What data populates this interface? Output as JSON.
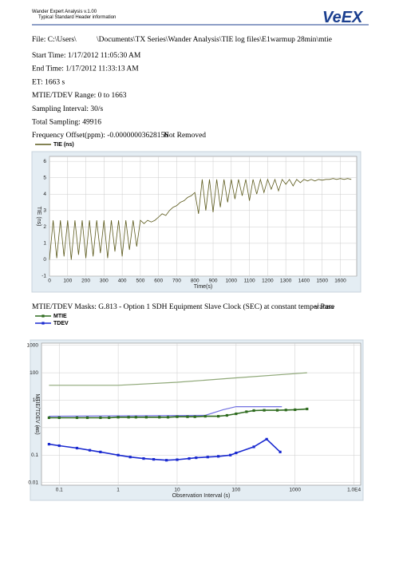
{
  "header": {
    "app": "Wander Expert Analysis v.1.00",
    "subtitle": "Typical Standard Header information",
    "logo": "VeEX"
  },
  "info": {
    "file_a": "File: C:\\Users\\",
    "file_b": "\\Documents\\TX Series\\Wander Analysis\\TIE log files\\E1warmup 28min\\mtie",
    "lines": [
      "Start Time: 1/17/2012 11:05:30 AM",
      "End Time: 1/17/2012 11:33:13 AM",
      "ET:  1663 s",
      "MTIE/TDEV Range: 0 to 1663",
      "Sampling Interval:  30/s",
      "Total Sampling:  49916"
    ],
    "freq": "Frequency Offset(ppm): -0.00000003628156",
    "freq_status": "Not Removed"
  },
  "masks": {
    "text": "MTIE/TDEV Masks: G.813 - Option 1 SDH Equipment Slave Clock (SEC) at constant temperature",
    "result": "√ Pass"
  },
  "chart_data": [
    {
      "type": "line",
      "xlabel": "Time(s)",
      "ylabel": "TIE (ns)",
      "xlim": [
        0,
        1690
      ],
      "ylim": [
        -1,
        6.3
      ],
      "xticks": [
        0,
        100,
        200,
        300,
        400,
        500,
        600,
        700,
        800,
        900,
        1000,
        1100,
        1200,
        1300,
        1400,
        1500,
        1600
      ],
      "yticks": [
        -1,
        0,
        1,
        2,
        3,
        4,
        5,
        6
      ],
      "grid": true,
      "x": [
        0,
        20,
        40,
        60,
        80,
        100,
        120,
        140,
        160,
        180,
        200,
        220,
        240,
        260,
        280,
        300,
        320,
        340,
        360,
        380,
        400,
        420,
        440,
        460,
        480,
        500,
        520,
        540,
        560,
        580,
        600,
        620,
        640,
        660,
        680,
        700,
        720,
        740,
        760,
        780,
        800,
        820,
        840,
        860,
        880,
        900,
        920,
        940,
        960,
        980,
        1000,
        1020,
        1040,
        1060,
        1080,
        1100,
        1120,
        1140,
        1160,
        1180,
        1200,
        1220,
        1240,
        1260,
        1280,
        1300,
        1320,
        1340,
        1360,
        1380,
        1400,
        1420,
        1440,
        1460,
        1480,
        1500,
        1520,
        1540,
        1560,
        1580,
        1600,
        1620,
        1640,
        1660
      ],
      "series": [
        {
          "name": "TIE (ns)",
          "color": "#5c5a1c",
          "values": [
            0.0,
            2.4,
            0.1,
            2.4,
            0.2,
            2.4,
            0.0,
            2.4,
            0.3,
            2.4,
            0.1,
            2.4,
            0.2,
            2.4,
            0.4,
            2.4,
            0.1,
            2.4,
            0.5,
            2.4,
            0.2,
            2.4,
            0.6,
            2.4,
            0.8,
            2.4,
            2.2,
            2.4,
            2.3,
            2.4,
            2.6,
            2.8,
            2.7,
            3.0,
            3.2,
            3.3,
            3.5,
            3.6,
            3.8,
            3.9,
            4.1,
            2.8,
            4.9,
            3.0,
            4.9,
            2.9,
            4.9,
            3.2,
            4.9,
            3.5,
            4.9,
            3.7,
            4.9,
            3.9,
            4.9,
            3.6,
            4.9,
            4.0,
            4.9,
            4.1,
            4.9,
            4.3,
            4.9,
            4.2,
            4.9,
            4.6,
            4.9,
            4.5,
            4.9,
            4.7,
            4.9,
            4.8,
            4.9,
            4.8,
            4.9,
            4.85,
            4.9,
            4.9,
            4.95,
            4.9,
            4.95,
            4.9,
            4.95,
            4.9
          ]
        }
      ]
    },
    {
      "type": "line",
      "xscale": "log",
      "yscale": "log",
      "xlabel": "Observation Interval (s)",
      "ylabel": "MTIE/TDEV (ns)",
      "xlim": [
        0.05,
        13000
      ],
      "ylim": [
        0.008,
        1200
      ],
      "xticks": [
        0.1,
        1,
        10,
        100,
        1000,
        {
          "value": 10000,
          "label": "1.0E4"
        }
      ],
      "yticks": [
        0.01,
        0.1,
        1,
        10,
        100,
        1000
      ],
      "grid": true,
      "mask_lines": [
        {
          "color": "#8fa878",
          "x": [
            0.067,
            1,
            10,
            100,
            1600
          ],
          "values": [
            35,
            35,
            45,
            65,
            100
          ]
        },
        {
          "color": "#7070e0",
          "x": [
            0.067,
            30,
            60,
            100,
            600
          ],
          "values": [
            2.6,
            2.8,
            4.5,
            5.8,
            5.8
          ]
        }
      ],
      "series": [
        {
          "name": "MTIE",
          "color": "#2e6b1e",
          "x": [
            0.067,
            0.1,
            0.2,
            0.3,
            0.5,
            0.7,
            1,
            1.5,
            2,
            3,
            5,
            7,
            10,
            15,
            20,
            30,
            50,
            70,
            100,
            150,
            200,
            300,
            500,
            700,
            1000,
            1600
          ],
          "values": [
            2.3,
            2.3,
            2.3,
            2.3,
            2.3,
            2.3,
            2.4,
            2.4,
            2.4,
            2.4,
            2.4,
            2.4,
            2.5,
            2.5,
            2.5,
            2.6,
            2.6,
            2.8,
            3.2,
            3.8,
            4.2,
            4.3,
            4.3,
            4.4,
            4.5,
            4.8
          ]
        },
        {
          "name": "TDEV",
          "color": "#1a2ad0",
          "x": [
            0.067,
            0.1,
            0.2,
            0.33,
            0.5,
            1,
            1.6,
            2.7,
            4,
            6.6,
            10,
            16,
            21,
            33,
            50,
            80,
            100,
            200,
            330,
            560
          ],
          "values": [
            0.25,
            0.22,
            0.18,
            0.15,
            0.13,
            0.1,
            0.085,
            0.075,
            0.07,
            0.065,
            0.068,
            0.075,
            0.08,
            0.085,
            0.09,
            0.1,
            0.12,
            0.2,
            0.38,
            0.13
          ]
        }
      ]
    }
  ]
}
